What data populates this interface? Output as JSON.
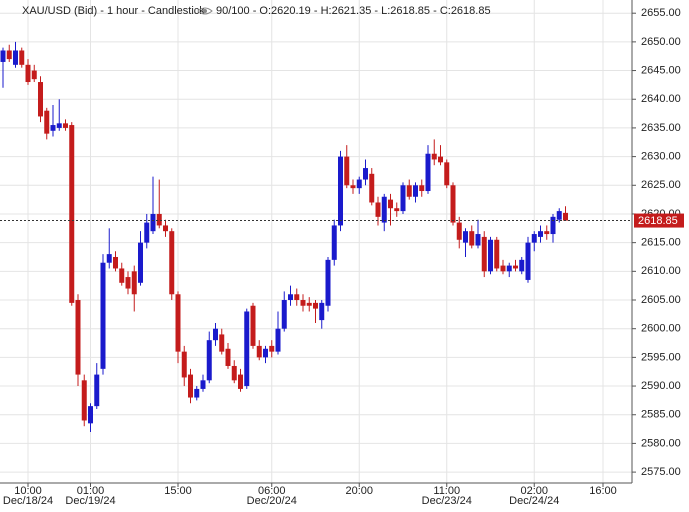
{
  "chart_data": {
    "type": "candlestick",
    "title": "XAU/USD (Bid) - 1 hour - Candlestick",
    "info": "90/100 - O:2620.19 - H:2621.35 - L:2618.85 - C:2618.85",
    "up_color": "#1a1acc",
    "down_color": "#c41c1c",
    "grid": true,
    "last_price": 2618.85,
    "last_price_label": "2618.85",
    "categories": [
      null,
      null,
      null,
      null,
      "10:00",
      null,
      null,
      null,
      null,
      null,
      null,
      null,
      null,
      null,
      "01:00",
      null,
      null,
      null,
      null,
      null,
      null,
      null,
      null,
      null,
      null,
      null,
      null,
      null,
      "15:00",
      null,
      null,
      null,
      null,
      null,
      null,
      null,
      null,
      null,
      null,
      null,
      null,
      null,
      null,
      "06:00",
      null,
      null,
      null,
      null,
      null,
      null,
      null,
      null,
      null,
      null,
      null,
      null,
      null,
      "20:00",
      null,
      null,
      null,
      null,
      null,
      null,
      null,
      null,
      null,
      null,
      null,
      null,
      null,
      "11:00",
      null,
      null,
      null,
      null,
      null,
      null,
      null,
      null,
      null,
      null,
      null,
      null,
      null,
      "02:00",
      null,
      null,
      null,
      null,
      null,
      null,
      null,
      null,
      null,
      null,
      "16:00"
    ],
    "dates": [
      null,
      null,
      null,
      null,
      "Dec/18/24",
      null,
      null,
      null,
      null,
      null,
      null,
      null,
      null,
      null,
      "Dec/19/24",
      null,
      null,
      null,
      null,
      null,
      null,
      null,
      null,
      null,
      null,
      null,
      null,
      null,
      null,
      null,
      null,
      null,
      null,
      null,
      null,
      null,
      null,
      null,
      null,
      null,
      null,
      null,
      null,
      "Dec/20/24",
      null,
      null,
      null,
      null,
      null,
      null,
      null,
      null,
      null,
      null,
      null,
      null,
      null,
      null,
      null,
      null,
      null,
      null,
      null,
      null,
      null,
      null,
      null,
      null,
      null,
      null,
      null,
      "Dec/23/24",
      null,
      null,
      null,
      null,
      null,
      null,
      null,
      null,
      null,
      null,
      null,
      null,
      null,
      "Dec/24/24",
      null,
      null,
      null,
      null,
      null,
      null,
      null,
      null,
      null,
      null,
      null
    ],
    "open": [
      2646.5,
      2648.5,
      2646,
      2648.5,
      2646,
      2645,
      2643,
      2638,
      2634.5,
      2635,
      2635.8,
      2635.5,
      2605,
      2591,
      2583.5,
      2586.5,
      2593,
      2611.5,
      2612.5,
      2610.5,
      2609,
      2610,
      2608,
      2615,
      2617,
      2620,
      2618,
      2617,
      2606,
      2596,
      2592,
      2588,
      2589.5,
      2591,
      2598,
      2599,
      2596.5,
      2593.5,
      2592,
      2590,
      2604,
      2597,
      2595,
      2597,
      2596,
      2600,
      2605,
      2606,
      2605,
      2604.5,
      2604.5,
      2601.5,
      2604,
      2612,
      2618,
      2630,
      2625,
      2624.5,
      2626,
      2627,
      2622,
      2618.5,
      2622.5,
      2621,
      2620.5,
      2625,
      2623,
      2625,
      2624,
      2630.5,
      2630,
      2629,
      2625,
      2618.5,
      2615,
      2617,
      2614.5,
      2616,
      2610,
      2615.5,
      2611,
      2610,
      2611,
      2610,
      2608.5,
      2615,
      2616,
      2617,
      2616.5,
      2619,
      2620.19,
      null,
      null,
      null,
      null,
      null,
      null
    ],
    "high": [
      2649,
      2649.5,
      2650,
      2649,
      2647,
      2646,
      2644,
      2638.5,
      2639,
      2640,
      2636.5,
      2636,
      2606,
      2592,
      2587,
      2594,
      2613,
      2617.5,
      2613.5,
      2611.5,
      2610,
      2611,
      2617,
      2620,
      2626.5,
      2626,
      2619,
      2617.5,
      2606.5,
      2597,
      2593,
      2590,
      2592,
      2599.5,
      2601,
      2600,
      2597.5,
      2594.5,
      2593,
      2603.5,
      2604.5,
      2598,
      2597,
      2598,
      2603,
      2606.5,
      2607.5,
      2607,
      2606,
      2605.5,
      2605,
      2605,
      2612.5,
      2619,
      2631,
      2632,
      2626,
      2626.5,
      2629.5,
      2628,
      2623,
      2623.5,
      2623.5,
      2622,
      2625.5,
      2626,
      2625.5,
      2626,
      2632,
      2633,
      2632,
      2629.5,
      2625.5,
      2619.5,
      2617.5,
      2618,
      2619,
      2617,
      2616,
      2616,
      2612,
      2611.5,
      2612,
      2612.5,
      2616,
      2617,
      2618,
      2618,
      2620,
      2621,
      2621.35,
      null,
      null,
      null,
      null,
      null,
      null
    ],
    "low": [
      2642,
      2646.5,
      2645.5,
      2645.5,
      2642.5,
      2643,
      2636,
      2633,
      2633.5,
      2634.5,
      2634.5,
      2604,
      2590,
      2583,
      2582,
      2586,
      2592,
      2610.5,
      2610,
      2607.5,
      2606,
      2603,
      2607.5,
      2614,
      2616.5,
      2617.5,
      2616,
      2605,
      2594,
      2590,
      2587,
      2587.5,
      2589,
      2590.5,
      2597,
      2595.5,
      2593,
      2590.5,
      2589,
      2589.5,
      2596.5,
      2594.5,
      2594,
      2595,
      2595.5,
      2599.5,
      2604,
      2604,
      2603,
      2603,
      2601,
      2600,
      2603,
      2611,
      2617,
      2624.5,
      2623.5,
      2623.5,
      2625,
      2621.5,
      2618,
      2617,
      2618,
      2619.5,
      2620,
      2622.5,
      2622,
      2623,
      2623.5,
      2628.5,
      2628.5,
      2624.5,
      2618,
      2614,
      2612.5,
      2614,
      2614,
      2609,
      2609.5,
      2610,
      2609.5,
      2609,
      2610,
      2609.5,
      2608,
      2613.5,
      2615,
      2615.5,
      2615,
      2618.5,
      2618.85,
      null,
      null,
      null,
      null,
      null,
      null
    ],
    "close": [
      2648.5,
      2647,
      2648.5,
      2646,
      2643,
      2643.5,
      2637,
      2634,
      2635.5,
      2635.8,
      2635,
      2604.5,
      2592,
      2584,
      2586.5,
      2592,
      2611.5,
      2613,
      2610.5,
      2608,
      2607,
      2606,
      2615,
      2618.5,
      2620,
      2618,
      2617,
      2606,
      2596,
      2591.5,
      2588,
      2589.5,
      2591,
      2598,
      2600,
      2596,
      2593.5,
      2591,
      2589.5,
      2603,
      2597,
      2595,
      2596.5,
      2596,
      2600,
      2605,
      2606,
      2605,
      2604,
      2604,
      2603.5,
      2604.5,
      2612,
      2618,
      2630,
      2625,
      2624.5,
      2626,
      2628,
      2622,
      2619.5,
      2623,
      2621,
      2620.5,
      2625,
      2623,
      2625,
      2624,
      2630.5,
      2629.5,
      2629,
      2625,
      2618.5,
      2615.5,
      2617,
      2614.5,
      2616.5,
      2610,
      2615.5,
      2610.5,
      2610,
      2611,
      2610.5,
      2612,
      2615,
      2616.5,
      2617,
      2616.5,
      2619.5,
      2620.5,
      2618.85,
      null,
      null,
      null,
      null,
      null,
      null
    ],
    "ylim": [
      2573.1,
      2657.3
    ],
    "yticks": [
      {
        "value": 2575,
        "label": "2575.00"
      },
      {
        "value": 2580,
        "label": "2580.00"
      },
      {
        "value": 2585,
        "label": "2585.00"
      },
      {
        "value": 2590,
        "label": "2590.00"
      },
      {
        "value": 2595,
        "label": "2595.00"
      },
      {
        "value": 2600,
        "label": "2600.00"
      },
      {
        "value": 2605,
        "label": "2605.00"
      },
      {
        "value": 2610,
        "label": "2610.00"
      },
      {
        "value": 2615,
        "label": "2615.00"
      },
      {
        "value": 2620,
        "label": "2620.00"
      },
      {
        "value": 2625,
        "label": "2625.00"
      },
      {
        "value": 2630,
        "label": "2630.00"
      },
      {
        "value": 2635,
        "label": "2635.00"
      },
      {
        "value": 2640,
        "label": "2640.00"
      },
      {
        "value": 2645,
        "label": "2645.00"
      },
      {
        "value": 2650,
        "label": "2650.00"
      },
      {
        "value": 2655,
        "label": "2655.00"
      }
    ]
  }
}
